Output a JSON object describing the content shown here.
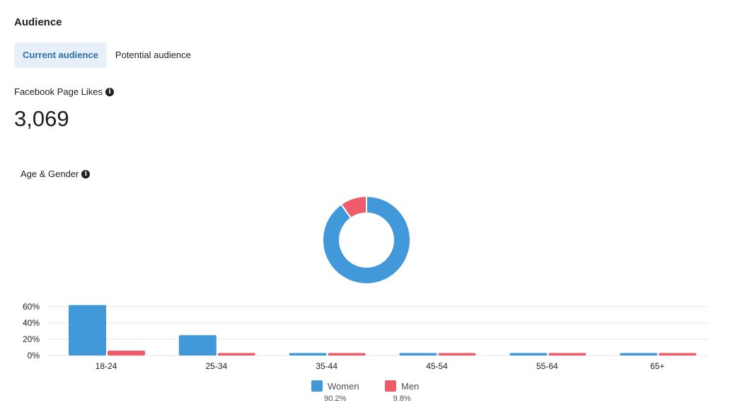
{
  "header": {
    "title": "Audience"
  },
  "tabs": [
    {
      "label": "Current audience",
      "active": true
    },
    {
      "label": "Potential audience",
      "active": false
    }
  ],
  "metric": {
    "label": "Facebook Page Likes",
    "value": "3,069",
    "info_icon": "info-icon"
  },
  "chart_section": {
    "title": "Age & Gender",
    "info_icon": "info-icon"
  },
  "colors": {
    "women": "#4299d9",
    "men": "#ef5b6b",
    "grid": "#e5e5e5",
    "accent": "#2a6fae"
  },
  "chart_data": [
    {
      "type": "pie",
      "style": "donut",
      "labels": [
        "Women",
        "Men"
      ],
      "values": [
        90.2,
        9.8
      ]
    },
    {
      "type": "bar",
      "categories": [
        "18-24",
        "25-34",
        "35-44",
        "45-54",
        "55-64",
        "65+"
      ],
      "series": [
        {
          "name": "Women",
          "values": [
            62,
            25,
            3,
            3,
            3,
            3
          ]
        },
        {
          "name": "Men",
          "values": [
            6,
            3,
            3,
            3,
            3,
            3
          ]
        }
      ],
      "yticks": [
        "60%",
        "40%",
        "20%",
        "0%"
      ],
      "ylim": [
        0,
        60
      ],
      "grid": true,
      "legend": [
        {
          "name": "Women",
          "percent": "90.2%"
        },
        {
          "name": "Men",
          "percent": "9.8%"
        }
      ],
      "legend_position": "bottom"
    }
  ]
}
